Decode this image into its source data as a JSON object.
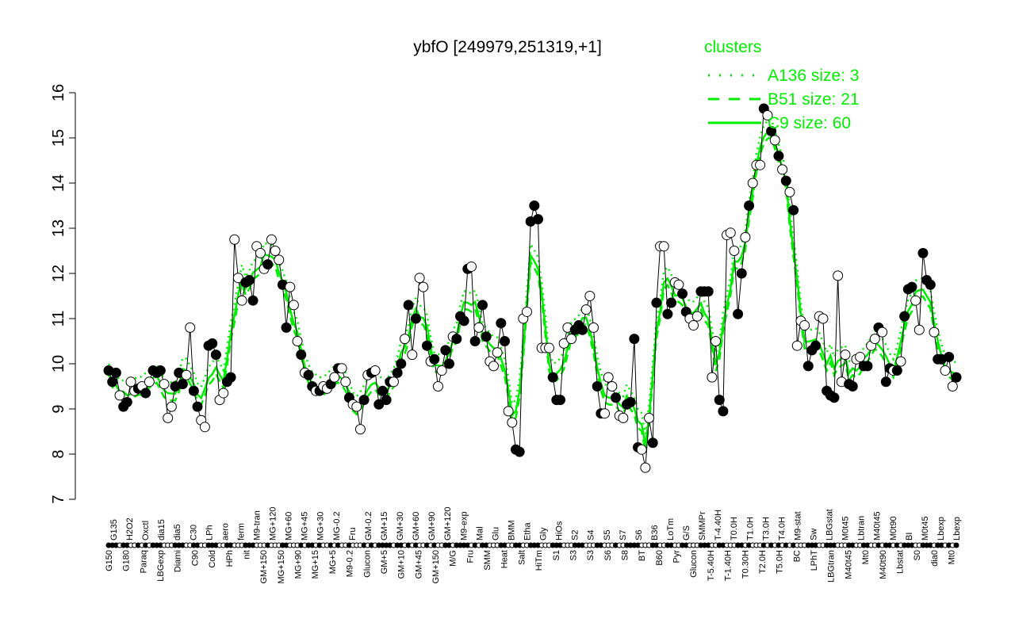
{
  "chart_data": {
    "type": "line",
    "title": "ybfO [249979,251319,+1]",
    "ylim": [
      7,
      16
    ],
    "yticks": [
      7,
      8,
      9,
      10,
      11,
      12,
      13,
      14,
      15,
      16
    ],
    "grid": false,
    "legend": {
      "title": "clusters",
      "placement": "top-right",
      "color": "#00ee00",
      "entries": [
        {
          "name": "A136 size: 3",
          "style": "dotted"
        },
        {
          "name": "B51 size: 21",
          "style": "dashed"
        },
        {
          "name": "C9 size: 60",
          "style": "solid"
        }
      ]
    },
    "xlabels_top": [
      "G135",
      "H2O2",
      "Oxctl",
      "dia15",
      "dia5",
      "C30",
      "LPh",
      "aero",
      "ferm",
      "M9-tran",
      "MG+120",
      "MG+60",
      "MG+45",
      "MG+30",
      "MG-0.2",
      "Fru",
      "GM-0.2",
      "GM+15",
      "GM+30",
      "GM+60",
      "GM+90",
      "GM+120",
      "M9-exp",
      "Mal",
      "Glu",
      "BMM",
      "Etha",
      "Gly",
      "HiOs",
      "S2",
      "S4",
      "S5",
      "S7",
      "S6",
      "B36",
      "LoTm",
      "G/S",
      "SMMPr",
      "T-4.40H",
      "T0.0H",
      "T1.0H",
      "T3.0H",
      "T4.0H",
      "M9-stat",
      "Sw",
      "LBGstat",
      "M0t45",
      "Lbtran",
      "M40t45",
      "M0t90",
      "BI",
      "M0t45",
      "Lbexp",
      "Lbexp"
    ],
    "xlabels_bottom": [
      "G150",
      "G180",
      "Paraq",
      "LBGexp",
      "Diami",
      "C90",
      "Cold",
      "HPh",
      "nit",
      "GM+150",
      "MG+150",
      "MG+90",
      "MG+15",
      "MG+5",
      "M9-0.2",
      "Glucon",
      "GM+5",
      "GM+10",
      "GM+45",
      "GM+150",
      "M/G",
      "Fru",
      "SMM",
      "Heat",
      "Salt",
      "HiTm",
      "S1",
      "S3",
      "S3",
      "S6",
      "S8",
      "BT",
      "B60",
      "Pyr",
      "Glucon",
      "T-5.40H",
      "T-1.40H",
      "T0.30H",
      "T2.0H",
      "T5.0H",
      "BC",
      "LPhT",
      "LBGtran",
      "M40t45",
      "Mt0",
      "M40t90",
      "Lbstat",
      "S0",
      "dia0",
      "Mt0"
    ],
    "points": [
      [
        9.85,
        1
      ],
      [
        9.6,
        1
      ],
      [
        9.8,
        1
      ],
      [
        9.3,
        0
      ],
      [
        9.05,
        1
      ],
      [
        9.15,
        1
      ],
      [
        9.6,
        0
      ],
      [
        9.4,
        0
      ],
      [
        9.45,
        1
      ],
      [
        9.5,
        0
      ],
      [
        9.35,
        1
      ],
      [
        9.6,
        0
      ],
      [
        9.85,
        1
      ],
      [
        9.8,
        1
      ],
      [
        9.85,
        1
      ],
      [
        9.55,
        0
      ],
      [
        8.8,
        0
      ],
      [
        9.05,
        0
      ],
      [
        9.5,
        1
      ],
      [
        9.8,
        1
      ],
      [
        9.55,
        1
      ],
      [
        9.75,
        0
      ],
      [
        10.8,
        0
      ],
      [
        9.4,
        1
      ],
      [
        9.05,
        1
      ],
      [
        8.75,
        0
      ],
      [
        8.6,
        0
      ],
      [
        10.4,
        1
      ],
      [
        10.45,
        1
      ],
      [
        10.2,
        1
      ],
      [
        9.2,
        0
      ],
      [
        9.35,
        0
      ],
      [
        9.6,
        1
      ],
      [
        9.7,
        1
      ],
      [
        12.75,
        0
      ],
      [
        11.9,
        0
      ],
      [
        11.4,
        0
      ],
      [
        11.8,
        1
      ],
      [
        11.85,
        1
      ],
      [
        11.4,
        1
      ],
      [
        12.6,
        0
      ],
      [
        12.45,
        0
      ],
      [
        12.1,
        0
      ],
      [
        12.2,
        1
      ],
      [
        12.75,
        0
      ],
      [
        12.5,
        0
      ],
      [
        12.3,
        0
      ],
      [
        11.75,
        1
      ],
      [
        10.8,
        1
      ],
      [
        11.7,
        0
      ],
      [
        11.3,
        0
      ],
      [
        10.5,
        0
      ],
      [
        10.2,
        1
      ],
      [
        9.8,
        0
      ],
      [
        9.75,
        1
      ],
      [
        9.5,
        1
      ],
      [
        9.4,
        0
      ],
      [
        9.4,
        1
      ],
      [
        9.5,
        0
      ],
      [
        9.45,
        0
      ],
      [
        9.55,
        1
      ],
      [
        9.7,
        0
      ],
      [
        9.9,
        1
      ],
      [
        9.9,
        0
      ],
      [
        9.6,
        0
      ],
      [
        9.25,
        1
      ],
      [
        9.1,
        0
      ],
      [
        9.05,
        0
      ],
      [
        8.55,
        0
      ],
      [
        9.2,
        1
      ],
      [
        9.75,
        0
      ],
      [
        9.8,
        1
      ],
      [
        9.85,
        0
      ],
      [
        9.1,
        1
      ],
      [
        9.4,
        1
      ],
      [
        9.2,
        1
      ],
      [
        9.6,
        1
      ],
      [
        9.6,
        0
      ],
      [
        9.8,
        1
      ],
      [
        10.0,
        1
      ],
      [
        10.55,
        0
      ],
      [
        11.3,
        1
      ],
      [
        10.2,
        0
      ],
      [
        11.0,
        1
      ],
      [
        11.9,
        0
      ],
      [
        11.7,
        0
      ],
      [
        10.4,
        1
      ],
      [
        10.05,
        0
      ],
      [
        10.1,
        1
      ],
      [
        9.5,
        0
      ],
      [
        9.85,
        0
      ],
      [
        10.3,
        1
      ],
      [
        10.0,
        1
      ],
      [
        10.6,
        0
      ],
      [
        10.55,
        1
      ],
      [
        11.05,
        1
      ],
      [
        10.95,
        1
      ],
      [
        12.1,
        1
      ],
      [
        12.15,
        0
      ],
      [
        10.5,
        1
      ],
      [
        10.8,
        0
      ],
      [
        11.3,
        1
      ],
      [
        10.6,
        1
      ],
      [
        10.05,
        0
      ],
      [
        9.95,
        0
      ],
      [
        10.25,
        0
      ],
      [
        10.9,
        1
      ],
      [
        10.5,
        1
      ],
      [
        8.95,
        0
      ],
      [
        8.7,
        0
      ],
      [
        8.1,
        1
      ],
      [
        8.05,
        1
      ],
      [
        11.0,
        0
      ],
      [
        11.15,
        0
      ],
      [
        13.15,
        1
      ],
      [
        13.5,
        1
      ],
      [
        13.2,
        1
      ],
      [
        10.35,
        0
      ],
      [
        10.35,
        0
      ],
      [
        10.35,
        0
      ],
      [
        9.7,
        1
      ],
      [
        9.2,
        1
      ],
      [
        9.2,
        1
      ],
      [
        10.45,
        0
      ],
      [
        10.8,
        0
      ],
      [
        10.55,
        0
      ],
      [
        10.75,
        1
      ],
      [
        10.85,
        1
      ],
      [
        10.75,
        1
      ],
      [
        11.2,
        0
      ],
      [
        11.5,
        0
      ],
      [
        10.8,
        0
      ],
      [
        9.5,
        1
      ],
      [
        8.9,
        1
      ],
      [
        8.9,
        0
      ],
      [
        9.7,
        0
      ],
      [
        9.5,
        0
      ],
      [
        9.25,
        1
      ],
      [
        8.85,
        0
      ],
      [
        8.8,
        0
      ],
      [
        9.1,
        1
      ],
      [
        9.15,
        1
      ],
      [
        10.55,
        1
      ],
      [
        8.15,
        1
      ],
      [
        8.1,
        0
      ],
      [
        7.7,
        0
      ],
      [
        8.8,
        0
      ],
      [
        8.25,
        1
      ],
      [
        11.35,
        1
      ],
      [
        12.6,
        0
      ],
      [
        12.6,
        0
      ],
      [
        11.1,
        1
      ],
      [
        11.35,
        1
      ],
      [
        11.8,
        0
      ],
      [
        11.75,
        0
      ],
      [
        11.55,
        1
      ],
      [
        11.15,
        1
      ],
      [
        11.0,
        0
      ],
      [
        10.85,
        0
      ],
      [
        11.05,
        0
      ],
      [
        11.6,
        1
      ],
      [
        11.6,
        1
      ],
      [
        11.6,
        1
      ],
      [
        9.7,
        0
      ],
      [
        10.5,
        0
      ],
      [
        9.2,
        1
      ],
      [
        8.95,
        1
      ],
      [
        12.85,
        0
      ],
      [
        12.9,
        0
      ],
      [
        12.5,
        0
      ],
      [
        11.1,
        1
      ],
      [
        12.0,
        1
      ],
      [
        12.8,
        0
      ],
      [
        13.5,
        1
      ],
      [
        14.0,
        0
      ],
      [
        14.4,
        0
      ],
      [
        14.4,
        0
      ],
      [
        15.65,
        1
      ],
      [
        15.5,
        0
      ],
      [
        15.15,
        1
      ],
      [
        14.95,
        0
      ],
      [
        14.6,
        1
      ],
      [
        14.3,
        0
      ],
      [
        14.05,
        1
      ],
      [
        13.8,
        0
      ],
      [
        13.4,
        1
      ],
      [
        10.4,
        0
      ],
      [
        10.95,
        0
      ],
      [
        10.85,
        0
      ],
      [
        9.95,
        1
      ],
      [
        10.3,
        1
      ],
      [
        10.4,
        1
      ],
      [
        11.05,
        0
      ],
      [
        11.0,
        0
      ],
      [
        9.4,
        1
      ],
      [
        9.3,
        1
      ],
      [
        9.25,
        1
      ],
      [
        11.95,
        0
      ],
      [
        9.6,
        0
      ],
      [
        10.2,
        0
      ],
      [
        9.55,
        1
      ],
      [
        9.5,
        1
      ],
      [
        10.1,
        0
      ],
      [
        10.15,
        0
      ],
      [
        9.95,
        1
      ],
      [
        9.95,
        1
      ],
      [
        10.4,
        0
      ],
      [
        10.55,
        0
      ],
      [
        10.8,
        1
      ],
      [
        10.7,
        0
      ],
      [
        9.6,
        1
      ],
      [
        9.9,
        1
      ],
      [
        9.85,
        0
      ],
      [
        9.85,
        1
      ],
      [
        10.05,
        0
      ],
      [
        11.05,
        1
      ],
      [
        11.65,
        1
      ],
      [
        11.7,
        1
      ],
      [
        11.4,
        0
      ],
      [
        10.75,
        0
      ],
      [
        12.45,
        1
      ],
      [
        11.85,
        1
      ],
      [
        11.75,
        1
      ],
      [
        10.7,
        0
      ],
      [
        10.1,
        1
      ],
      [
        10.1,
        1
      ],
      [
        9.85,
        0
      ],
      [
        10.15,
        1
      ],
      [
        9.5,
        0
      ],
      [
        9.7,
        1
      ]
    ]
  }
}
